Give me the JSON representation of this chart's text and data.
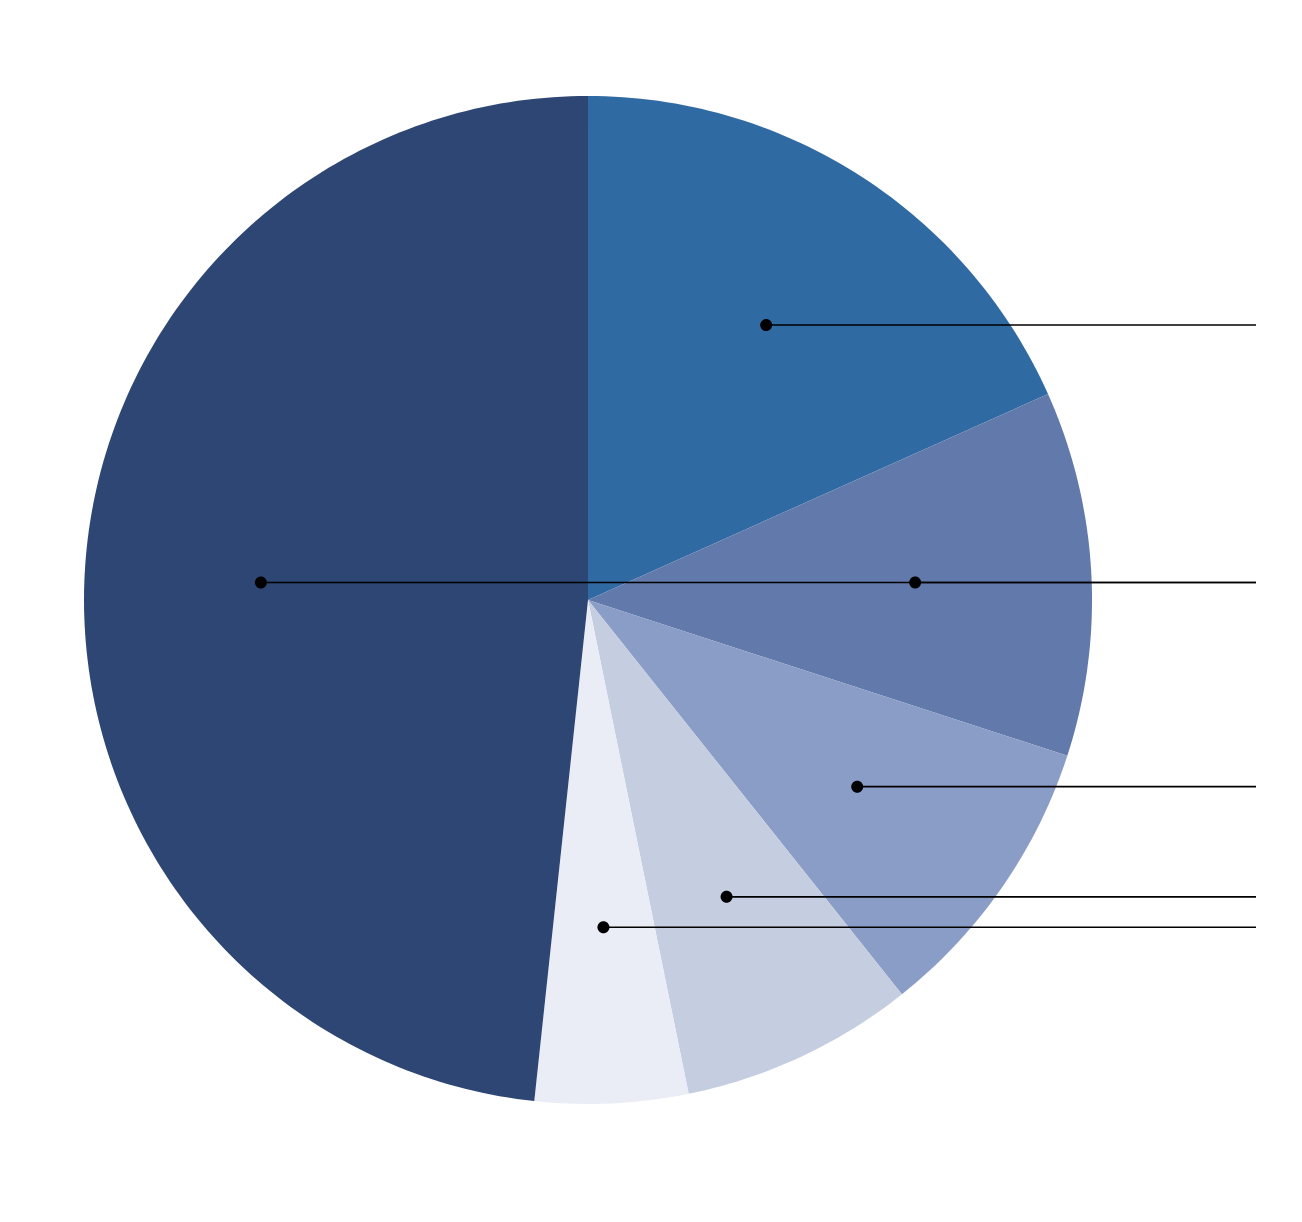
{
  "chart_data": {
    "type": "pie",
    "categories": [
      null,
      null,
      null,
      null,
      null,
      null
    ],
    "values": [
      18.3,
      11.7,
      9.3,
      7.5,
      4.9,
      48.3
    ],
    "colors": [
      "#2f6aa3",
      "#6279ab",
      "#8a9dc6",
      "#c5cde0",
      "#eaedf5",
      "#2e4673"
    ]
  }
}
